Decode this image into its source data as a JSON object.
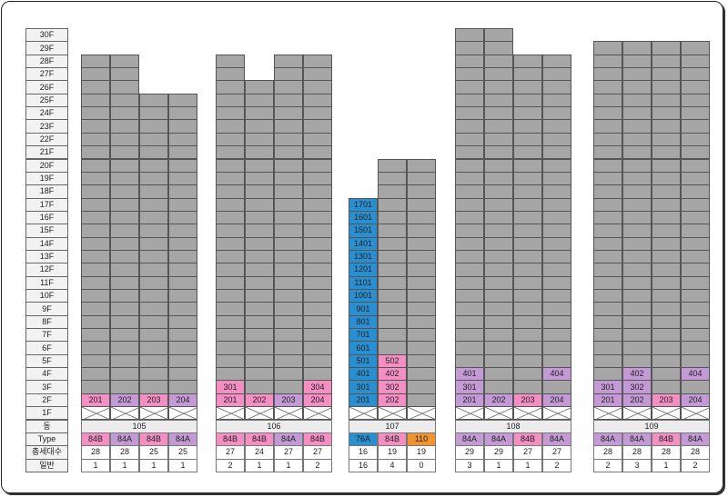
{
  "colors": {
    "unit": "#a6a6a6",
    "pink": "#f48fc4",
    "purple": "#c49ad6",
    "blue": "#2a8fd0",
    "orange": "#f2942d",
    "dong_bg": "#ececec"
  },
  "row_labels": {
    "dong": "동",
    "type": "Type",
    "total": "총세대수",
    "general": "일반"
  },
  "floors": [
    "30F",
    "29F",
    "28F",
    "27F",
    "26F",
    "25F",
    "24F",
    "23F",
    "22F",
    "21F",
    "20F",
    "19F",
    "18F",
    "17F",
    "16F",
    "15F",
    "14F",
    "13F",
    "12F",
    "11F",
    "10F",
    "9F",
    "8F",
    "7F",
    "6F",
    "5F",
    "4F",
    "3F",
    "2F",
    "1F"
  ],
  "buildings": [
    {
      "dong": "105",
      "lines": [
        {
          "top": 28,
          "type": "84B",
          "type_color": "pink",
          "total": "28",
          "general": "1",
          "units": {
            "2": {
              "label": "201",
              "color": "pink"
            }
          }
        },
        {
          "top": 28,
          "type": "84A",
          "type_color": "purple",
          "total": "28",
          "general": "1",
          "units": {
            "2": {
              "label": "202",
              "color": "purple"
            }
          }
        },
        {
          "top": 25,
          "type": "84B",
          "type_color": "pink",
          "total": "25",
          "general": "1",
          "units": {
            "2": {
              "label": "203",
              "color": "pink"
            }
          }
        },
        {
          "top": 25,
          "type": "84A",
          "type_color": "purple",
          "total": "25",
          "general": "1",
          "units": {
            "2": {
              "label": "204",
              "color": "purple"
            }
          }
        }
      ]
    },
    {
      "dong": "106",
      "lines": [
        {
          "top": 28,
          "type": "84B",
          "type_color": "pink",
          "total": "27",
          "general": "2",
          "units": {
            "2": {
              "label": "201",
              "color": "pink"
            },
            "3": {
              "label": "301",
              "color": "pink"
            }
          }
        },
        {
          "top": 26,
          "type": "84B",
          "type_color": "pink",
          "total": "24",
          "general": "1",
          "units": {
            "2": {
              "label": "202",
              "color": "pink"
            }
          }
        },
        {
          "top": 28,
          "type": "84A",
          "type_color": "purple",
          "total": "27",
          "general": "1",
          "units": {
            "2": {
              "label": "203",
              "color": "purple"
            }
          }
        },
        {
          "top": 28,
          "type": "84B",
          "type_color": "pink",
          "total": "27",
          "general": "2",
          "units": {
            "2": {
              "label": "204",
              "color": "pink"
            },
            "3": {
              "label": "304",
              "color": "pink"
            }
          }
        }
      ]
    },
    {
      "dong": "107",
      "lines": [
        {
          "top": 17,
          "type": "76A",
          "type_color": "blue",
          "total": "16",
          "general": "16",
          "units": {
            "2": {
              "label": "201",
              "color": "blue"
            },
            "3": {
              "label": "301",
              "color": "blue"
            },
            "4": {
              "label": "401",
              "color": "blue"
            },
            "5": {
              "label": "501",
              "color": "blue"
            },
            "6": {
              "label": "601",
              "color": "blue"
            },
            "7": {
              "label": "701",
              "color": "blue"
            },
            "8": {
              "label": "801",
              "color": "blue"
            },
            "9": {
              "label": "901",
              "color": "blue"
            },
            "10": {
              "label": "1001",
              "color": "blue"
            },
            "11": {
              "label": "1101",
              "color": "blue"
            },
            "12": {
              "label": "1201",
              "color": "blue"
            },
            "13": {
              "label": "1301",
              "color": "blue"
            },
            "14": {
              "label": "1401",
              "color": "blue"
            },
            "15": {
              "label": "1501",
              "color": "blue"
            },
            "16": {
              "label": "1601",
              "color": "blue"
            },
            "17": {
              "label": "1701",
              "color": "blue"
            }
          }
        },
        {
          "top": 20,
          "type": "84B",
          "type_color": "pink",
          "total": "19",
          "general": "4",
          "units": {
            "2": {
              "label": "202",
              "color": "pink"
            },
            "3": {
              "label": "302",
              "color": "pink"
            },
            "4": {
              "label": "402",
              "color": "pink"
            },
            "5": {
              "label": "502",
              "color": "pink"
            }
          }
        },
        {
          "top": 20,
          "type": "110",
          "type_color": "orange",
          "total": "19",
          "general": "0",
          "units": {}
        }
      ]
    },
    {
      "dong": "108",
      "lines": [
        {
          "top": 30,
          "type": "84A",
          "type_color": "purple",
          "total": "29",
          "general": "3",
          "units": {
            "2": {
              "label": "201",
              "color": "purple"
            },
            "3": {
              "label": "301",
              "color": "purple"
            },
            "4": {
              "label": "401",
              "color": "purple"
            }
          }
        },
        {
          "top": 30,
          "type": "84A",
          "type_color": "purple",
          "total": "29",
          "general": "1",
          "units": {
            "2": {
              "label": "202",
              "color": "purple"
            }
          }
        },
        {
          "top": 28,
          "type": "84B",
          "type_color": "pink",
          "total": "27",
          "general": "1",
          "units": {
            "2": {
              "label": "203",
              "color": "pink"
            }
          }
        },
        {
          "top": 28,
          "type": "84A",
          "type_color": "purple",
          "total": "27",
          "general": "2",
          "units": {
            "2": {
              "label": "204",
              "color": "purple"
            },
            "4": {
              "label": "404",
              "color": "purple"
            }
          }
        }
      ]
    },
    {
      "dong": "109",
      "lines": [
        {
          "top": 29,
          "type": "84A",
          "type_color": "purple",
          "total": "28",
          "general": "2",
          "units": {
            "2": {
              "label": "201",
              "color": "purple"
            },
            "3": {
              "label": "301",
              "color": "purple"
            }
          }
        },
        {
          "top": 29,
          "type": "84A",
          "type_color": "purple",
          "total": "28",
          "general": "3",
          "units": {
            "2": {
              "label": "202",
              "color": "purple"
            },
            "3": {
              "label": "302",
              "color": "purple"
            },
            "4": {
              "label": "402",
              "color": "purple"
            }
          }
        },
        {
          "top": 29,
          "type": "84B",
          "type_color": "pink",
          "total": "28",
          "general": "1",
          "units": {
            "2": {
              "label": "203",
              "color": "pink"
            }
          }
        },
        {
          "top": 29,
          "type": "84A",
          "type_color": "purple",
          "total": "28",
          "general": "2",
          "units": {
            "2": {
              "label": "204",
              "color": "purple"
            },
            "4": {
              "label": "404",
              "color": "purple"
            }
          }
        }
      ]
    }
  ]
}
